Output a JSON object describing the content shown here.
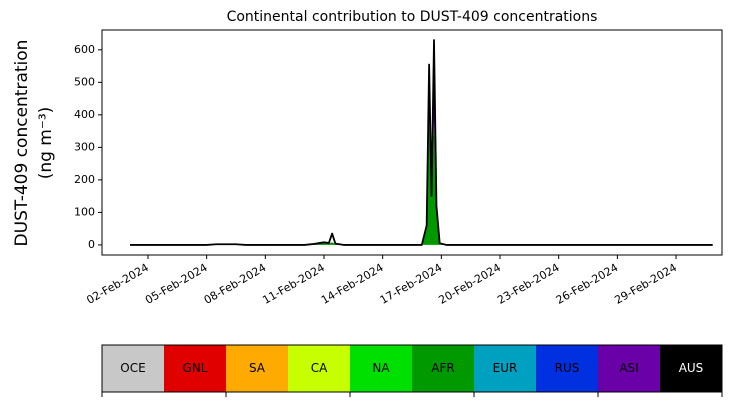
{
  "chart_data": {
    "type": "stacked_area",
    "title": "Continental contribution to DUST-409 concentrations",
    "ylabel": [
      "DUST-409 concentration",
      "(ng m⁻³)"
    ],
    "x": [
      "2024-02-01T02:00",
      "2024-02-05T00:00",
      "2024-02-05T12:00",
      "2024-02-06T12:00",
      "2024-02-07T00:00",
      "2024-02-10T00:00",
      "2024-02-10T12:00",
      "2024-02-11T00:00",
      "2024-02-11T06:00",
      "2024-02-11T10:00",
      "2024-02-11T14:00",
      "2024-02-12T00:00",
      "2024-02-16T00:00",
      "2024-02-16T06:00",
      "2024-02-16T09:00",
      "2024-02-16T12:00",
      "2024-02-16T15:00",
      "2024-02-16T18:00",
      "2024-02-16T22:00",
      "2024-02-17T06:00",
      "2024-03-01T21:00"
    ],
    "series": [
      {
        "region": 5,
        "values": [
          0,
          0,
          2,
          2,
          0,
          0,
          3,
          6,
          5,
          8,
          3,
          0,
          0,
          55,
          400,
          140,
          380,
          100,
          5,
          0,
          0
        ]
      },
      {
        "region": 8,
        "values": [
          0,
          0,
          0,
          0,
          0,
          0,
          0,
          0,
          0,
          0,
          0,
          0,
          0,
          0,
          120,
          5,
          240,
          15,
          0,
          0,
          0
        ]
      }
    ],
    "total_line": {
      "color": "#000000",
      "values": [
        0,
        0,
        2,
        2,
        0,
        0,
        3,
        8,
        6,
        35,
        4,
        0,
        0,
        60,
        555,
        150,
        630,
        120,
        5,
        0,
        0
      ]
    },
    "xlim": [
      "2024-01-30T15:36",
      "2024-03-02T08:24"
    ],
    "xticks": [
      {
        "value": "2024-02-02",
        "label": "02-Feb-2024"
      },
      {
        "value": "2024-02-05",
        "label": "05-Feb-2024"
      },
      {
        "value": "2024-02-08",
        "label": "08-Feb-2024"
      },
      {
        "value": "2024-02-11",
        "label": "11-Feb-2024"
      },
      {
        "value": "2024-02-14",
        "label": "14-Feb-2024"
      },
      {
        "value": "2024-02-17",
        "label": "17-Feb-2024"
      },
      {
        "value": "2024-02-20",
        "label": "20-Feb-2024"
      },
      {
        "value": "2024-02-23",
        "label": "23-Feb-2024"
      },
      {
        "value": "2024-02-26",
        "label": "26-Feb-2024"
      },
      {
        "value": "2024-02-29",
        "label": "29-Feb-2024"
      }
    ],
    "ylim": [
      -31,
      661
    ],
    "yticks": [
      0,
      100,
      200,
      300,
      400,
      500,
      600
    ],
    "regions": [
      {
        "name": "OCE",
        "color": "#c8c8c8"
      },
      {
        "name": "GNL",
        "color": "#e00000"
      },
      {
        "name": "SA",
        "color": "#ffaa00"
      },
      {
        "name": "CA",
        "color": "#c8ff00"
      },
      {
        "name": "NA",
        "color": "#00e000"
      },
      {
        "name": "AFR",
        "color": "#009900"
      },
      {
        "name": "EUR",
        "color": "#00a0c0"
      },
      {
        "name": "RUS",
        "color": "#0030e0"
      },
      {
        "name": "ASI",
        "color": "#6a00a8"
      },
      {
        "name": "AUS",
        "color": "#000000"
      }
    ]
  }
}
